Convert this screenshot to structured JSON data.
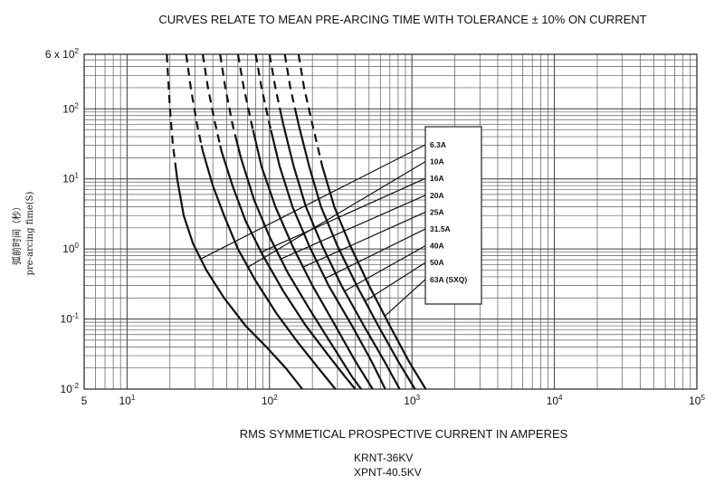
{
  "title": "CURVES RELATE TO MEAN PRE-ARCING TIME WITH TOLERANCE ± 10% ON CURRENT",
  "xlabel": "RMS SYMMETICAL PROSPECTIVE CURRENT IN AMPERES",
  "ylabel_cn": "弧前时间（秒）",
  "ylabel_en": "pre-arcing fime(S)",
  "models": [
    "KRNT-36KV",
    "XPNT-40.5KV"
  ],
  "chart_data": {
    "type": "line",
    "title": "CURVES RELATE TO MEAN PRE-ARCING TIME WITH TOLERANCE ± 10% ON CURRENT",
    "xlabel": "RMS SYMMETICAL PROSPECTIVE CURRENT IN AMPERES",
    "ylabel": "pre-arcing fime(S)",
    "x_scale": "log",
    "y_scale": "log",
    "xlim": [
      5,
      100000
    ],
    "ylim": [
      0.01,
      600
    ],
    "grid": true,
    "legend_position": "right",
    "x_ticks": [
      {
        "value": 5,
        "base": "5",
        "exp": ""
      },
      {
        "value": 10,
        "base": "10",
        "exp": "1"
      },
      {
        "value": 100,
        "base": "10",
        "exp": "2"
      },
      {
        "value": 1000,
        "base": "10",
        "exp": "3"
      },
      {
        "value": 10000,
        "base": "10",
        "exp": "4"
      },
      {
        "value": 100000,
        "base": "10",
        "exp": "5"
      }
    ],
    "y_ticks": [
      {
        "value": 0.01,
        "base": "10",
        "exp": "-2"
      },
      {
        "value": 0.1,
        "base": "10",
        "exp": "-1"
      },
      {
        "value": 1,
        "base": "10",
        "exp": "0"
      },
      {
        "value": 10,
        "base": "10",
        "exp": "1"
      },
      {
        "value": 100,
        "base": "10",
        "exp": "2"
      },
      {
        "value": 600,
        "base": "6 x 10",
        "exp": "2"
      }
    ],
    "series": [
      {
        "name": "6.3A",
        "dashed_above": 15,
        "anchor_y": 0.72,
        "points": [
          [
            19,
            600
          ],
          [
            20,
            100
          ],
          [
            21,
            30
          ],
          [
            22.5,
            10
          ],
          [
            25,
            3
          ],
          [
            29,
            1.2
          ],
          [
            36,
            0.5
          ],
          [
            48,
            0.2
          ],
          [
            68,
            0.08
          ],
          [
            95,
            0.04
          ],
          [
            130,
            0.02
          ],
          [
            170,
            0.01
          ]
        ]
      },
      {
        "name": "10A",
        "dashed_above": 30,
        "anchor_y": 0.55,
        "points": [
          [
            26,
            600
          ],
          [
            28,
            200
          ],
          [
            31,
            60
          ],
          [
            34,
            25
          ],
          [
            40,
            8
          ],
          [
            48,
            3
          ],
          [
            60,
            1
          ],
          [
            80,
            0.35
          ],
          [
            112,
            0.12
          ],
          [
            160,
            0.045
          ],
          [
            220,
            0.02
          ],
          [
            290,
            0.01
          ]
        ]
      },
      {
        "name": "16A",
        "dashed_above": 30,
        "anchor_y": 0.9,
        "points": [
          [
            34,
            600
          ],
          [
            37,
            200
          ],
          [
            41,
            70
          ],
          [
            46,
            25
          ],
          [
            55,
            8
          ],
          [
            68,
            2.5
          ],
          [
            90,
            0.8
          ],
          [
            125,
            0.25
          ],
          [
            180,
            0.08
          ],
          [
            260,
            0.03
          ],
          [
            340,
            0.015
          ],
          [
            400,
            0.01
          ]
        ]
      },
      {
        "name": "20A",
        "dashed_above": 40,
        "anchor_y": 0.72,
        "points": [
          [
            45,
            600
          ],
          [
            49,
            200
          ],
          [
            55,
            60
          ],
          [
            63,
            20
          ],
          [
            78,
            5
          ],
          [
            100,
            1.5
          ],
          [
            135,
            0.45
          ],
          [
            190,
            0.14
          ],
          [
            270,
            0.045
          ],
          [
            380,
            0.015
          ],
          [
            440,
            0.01
          ]
        ]
      },
      {
        "name": "25A",
        "dashed_above": 50,
        "anchor_y": 0.55,
        "points": [
          [
            60,
            600
          ],
          [
            66,
            200
          ],
          [
            75,
            60
          ],
          [
            88,
            15
          ],
          [
            110,
            4
          ],
          [
            145,
            1.1
          ],
          [
            200,
            0.3
          ],
          [
            290,
            0.08
          ],
          [
            400,
            0.025
          ],
          [
            530,
            0.01
          ]
        ]
      },
      {
        "name": "31.5A",
        "dashed_above": 50,
        "anchor_y": 0.38,
        "points": [
          [
            80,
            600
          ],
          [
            88,
            200
          ],
          [
            100,
            60
          ],
          [
            118,
            15
          ],
          [
            145,
            4
          ],
          [
            190,
            1.1
          ],
          [
            260,
            0.3
          ],
          [
            380,
            0.08
          ],
          [
            520,
            0.025
          ],
          [
            650,
            0.01
          ]
        ]
      },
      {
        "name": "40A",
        "dashed_above": 100,
        "anchor_y": 0.25,
        "points": [
          [
            100,
            600
          ],
          [
            110,
            200
          ],
          [
            125,
            60
          ],
          [
            148,
            15
          ],
          [
            180,
            4
          ],
          [
            235,
            1.1
          ],
          [
            320,
            0.3
          ],
          [
            460,
            0.08
          ],
          [
            640,
            0.025
          ],
          [
            820,
            0.01
          ]
        ]
      },
      {
        "name": "50A",
        "dashed_above": 100,
        "anchor_y": 0.18,
        "points": [
          [
            128,
            600
          ],
          [
            140,
            200
          ],
          [
            160,
            60
          ],
          [
            190,
            15
          ],
          [
            230,
            4
          ],
          [
            300,
            1.1
          ],
          [
            410,
            0.3
          ],
          [
            580,
            0.08
          ],
          [
            800,
            0.025
          ],
          [
            1050,
            0.01
          ]
        ]
      },
      {
        "name": "63A (SXQ)",
        "dashed_above": 15,
        "anchor_y": 0.11,
        "points": [
          [
            160,
            600
          ],
          [
            175,
            200
          ],
          [
            200,
            60
          ],
          [
            235,
            15
          ],
          [
            285,
            4
          ],
          [
            370,
            1.1
          ],
          [
            500,
            0.3
          ],
          [
            700,
            0.08
          ],
          [
            950,
            0.025
          ],
          [
            1250,
            0.01
          ]
        ]
      }
    ]
  }
}
